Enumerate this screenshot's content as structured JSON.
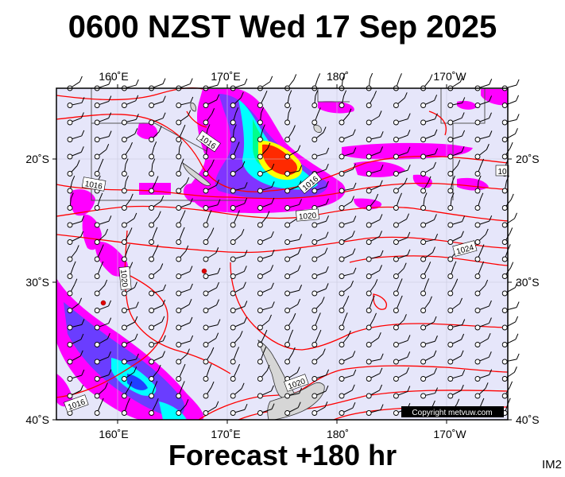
{
  "header": {
    "title": "0600 NZST Wed 17 Sep 2025"
  },
  "footer": {
    "forecast": "Forecast +180 hr",
    "tag": "IM2"
  },
  "map": {
    "longitude_ticks": [
      "160˚E",
      "170˚E",
      "180˚",
      "170˚W"
    ],
    "latitude_ticks": [
      "20˚S",
      "30˚S",
      "40˚S"
    ],
    "isobar_labels": [
      "1016",
      "1016",
      "1016",
      "1020",
      "1020",
      "1024",
      "1020",
      "1016",
      "10"
    ],
    "copyright": "Copyright metvuw.com",
    "colors": {
      "ocean": "#e6e6fa",
      "isobar": "#ff0000",
      "rain_light": "#ff00ff",
      "rain_mid": "#4040ff",
      "rain_heavy": "#00ffff",
      "rain_extreme": "#ff2a00",
      "land": "#d9d9d9"
    }
  }
}
